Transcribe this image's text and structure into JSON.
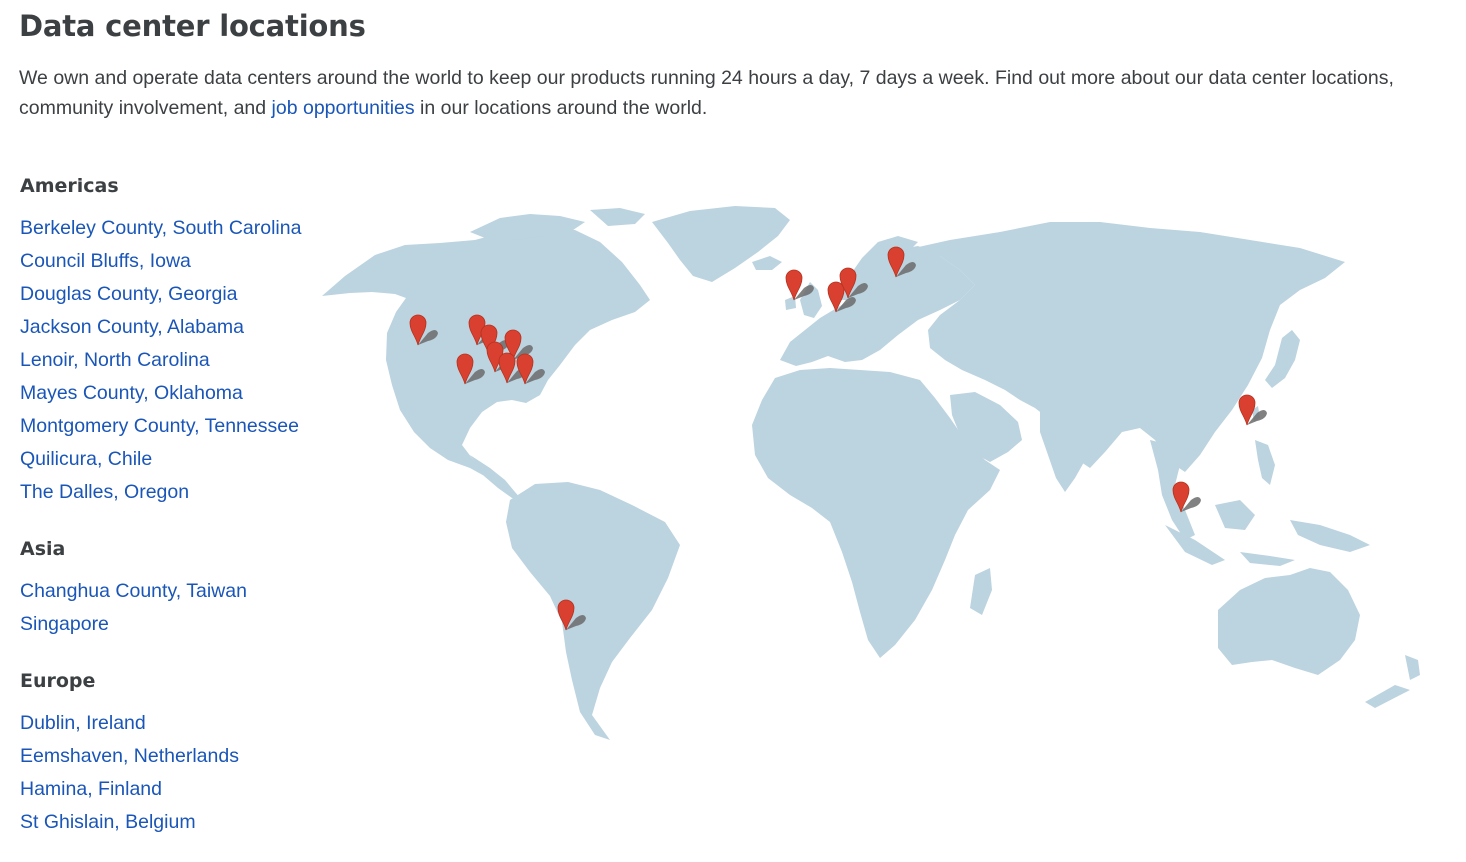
{
  "page": {
    "title": "Data center locations",
    "intro_before": "We own and operate data centers around the world to keep our products running 24 hours a day, 7 days a week. Find out more about our data center locations, community involvement, and ",
    "intro_link": "job opportunities",
    "intro_after": " in our locations around the world."
  },
  "regions": {
    "americas": {
      "heading": "Americas",
      "items": [
        "Berkeley County, South Carolina",
        "Council Bluffs, Iowa",
        "Douglas County, Georgia",
        "Jackson County, Alabama",
        "Lenoir, North Carolina",
        "Mayes County, Oklahoma",
        "Montgomery County, Tennessee",
        "Quilicura, Chile",
        "The Dalles, Oregon"
      ]
    },
    "asia": {
      "heading": "Asia",
      "items": [
        "Changhua County, Taiwan",
        "Singapore"
      ]
    },
    "europe": {
      "heading": "Europe",
      "items": [
        "Dublin, Ireland",
        "Eemshaven, Netherlands",
        "Hamina, Finland",
        "St Ghislain, Belgium"
      ]
    }
  },
  "map": {
    "land_color": "#bcd3e0",
    "pin_color": "#d9402f",
    "shadow_color": "#6b6b6b",
    "marker_icon": "map-pin-icon",
    "marker_count": 18
  }
}
